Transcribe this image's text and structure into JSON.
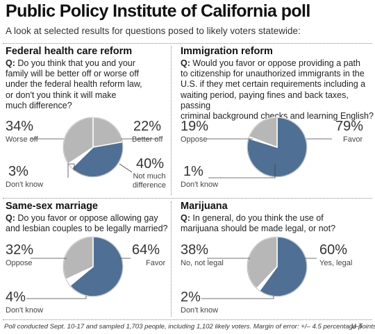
{
  "title": "Public Policy Institute of California poll",
  "subtitle": "A look at selected results for questions posed to likely voters statewide:",
  "footer": "Poll conducted Sept. 10-17 and sampled 1,703 people, including 1,102 likely voters. Margin of error: +/– 4.5 percentage points.",
  "credit": "U-T",
  "colors": {
    "blue": "#4f6f94",
    "gray": "#b7b7b7",
    "white": "#ffffff",
    "leader": "#444444"
  },
  "chart_data": [
    {
      "type": "pie",
      "title": "Federal health care reform",
      "question_prefix": "Q:",
      "question": "Do you think that you and your\nfamily will be better off or worse off\nunder the federal health reform law,\nor don't you think it will make\nmuch difference?",
      "slices": [
        {
          "label": "Better off",
          "value": 22,
          "display": "22%",
          "color": "#b7b7b7"
        },
        {
          "label": "Not much difference",
          "value": 40,
          "display": "40%",
          "color": "#4f6f94"
        },
        {
          "label": "Don't know",
          "value": 3,
          "display": "3%",
          "color": "#ffffff"
        },
        {
          "label": "Worse off",
          "value": 34,
          "display": "34%",
          "color": "#b7b7b7"
        }
      ],
      "label_lines": {
        "Not much difference": [
          "Not much",
          "difference"
        ]
      }
    },
    {
      "type": "pie",
      "title": "Immigration reform",
      "question_prefix": "Q:",
      "question": "Would you favor or oppose providing a path\nto citizenship for unauthorized immigrants in the\nU.S. if they met certain requirements including a\nwaiting period, paying fines and back taxes, passing\ncriminal background checks and learning English?",
      "slices": [
        {
          "label": "Favor",
          "value": 79,
          "display": "79%",
          "color": "#4f6f94"
        },
        {
          "label": "Don't know",
          "value": 1,
          "display": "1%",
          "color": "#ffffff"
        },
        {
          "label": "Oppose",
          "value": 19,
          "display": "19%",
          "color": "#b7b7b7"
        }
      ]
    },
    {
      "type": "pie",
      "title": "Same-sex marriage",
      "question_prefix": "Q:",
      "question": "Do you favor or oppose allowing gay\nand lesbian couples to be legally married?",
      "slices": [
        {
          "label": "Favor",
          "value": 64,
          "display": "64%",
          "color": "#4f6f94"
        },
        {
          "label": "Don't know",
          "value": 4,
          "display": "4%",
          "color": "#ffffff"
        },
        {
          "label": "Oppose",
          "value": 32,
          "display": "32%",
          "color": "#b7b7b7"
        }
      ]
    },
    {
      "type": "pie",
      "title": "Marijuana",
      "question_prefix": "Q:",
      "question": "In general, do you think the use  of\nmarijuana should be made legal, or not?",
      "slices": [
        {
          "label": "Yes, legal",
          "value": 60,
          "display": "60%",
          "color": "#4f6f94"
        },
        {
          "label": "Don't know",
          "value": 2,
          "display": "2%",
          "color": "#ffffff"
        },
        {
          "label": "No, not legal",
          "value": 38,
          "display": "38%",
          "color": "#b7b7b7"
        }
      ]
    }
  ]
}
